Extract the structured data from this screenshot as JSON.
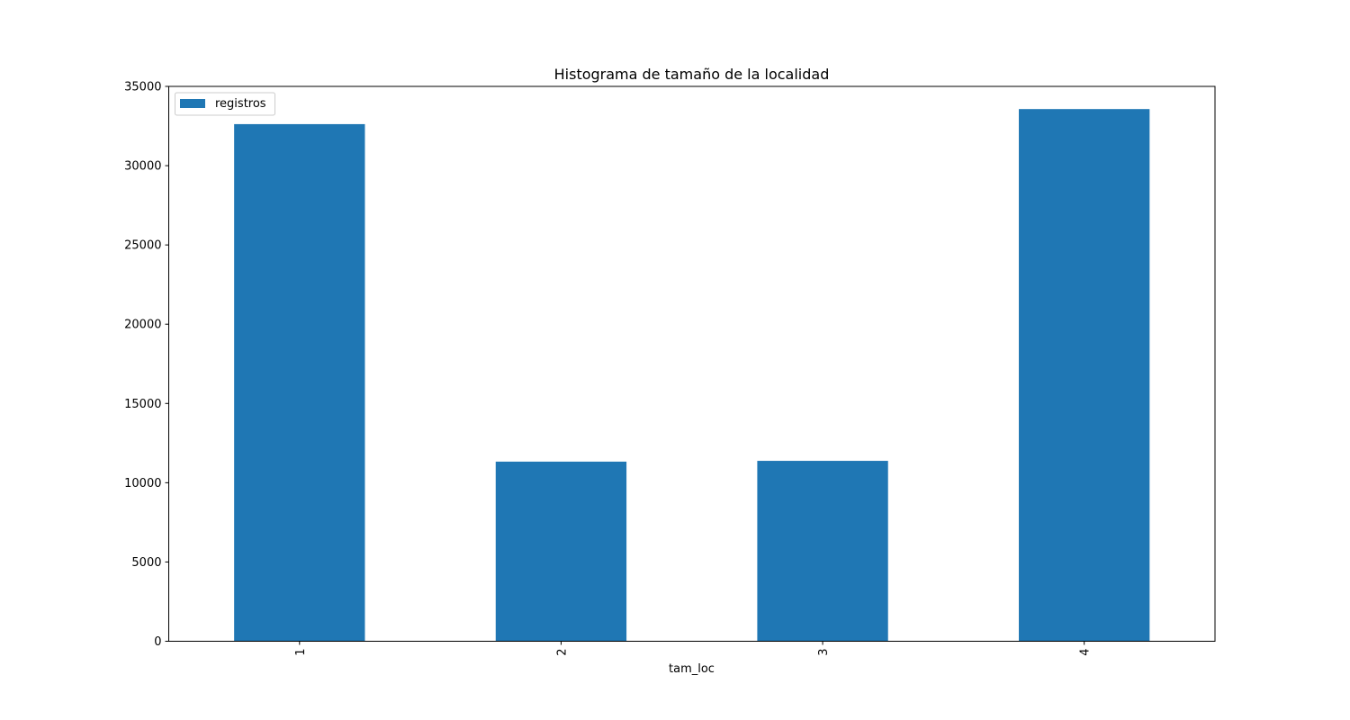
{
  "chart_data": {
    "type": "bar",
    "title": "Histograma de tamaño de la localidad",
    "xlabel": "tam_loc",
    "ylabel": "",
    "categories": [
      "1",
      "2",
      "3",
      "4"
    ],
    "series": [
      {
        "name": "registros",
        "values": [
          32620,
          11330,
          11380,
          33570
        ],
        "color": "#1f77b4"
      }
    ],
    "ylim": [
      0,
      35000
    ],
    "yticks": [
      0,
      5000,
      10000,
      15000,
      20000,
      25000,
      30000,
      35000
    ],
    "ytick_labels": [
      "0",
      "5000",
      "10000",
      "15000",
      "20000",
      "25000",
      "30000",
      "35000"
    ],
    "xtick_rotation": "vertical",
    "grid": false,
    "legend": "upper left"
  }
}
